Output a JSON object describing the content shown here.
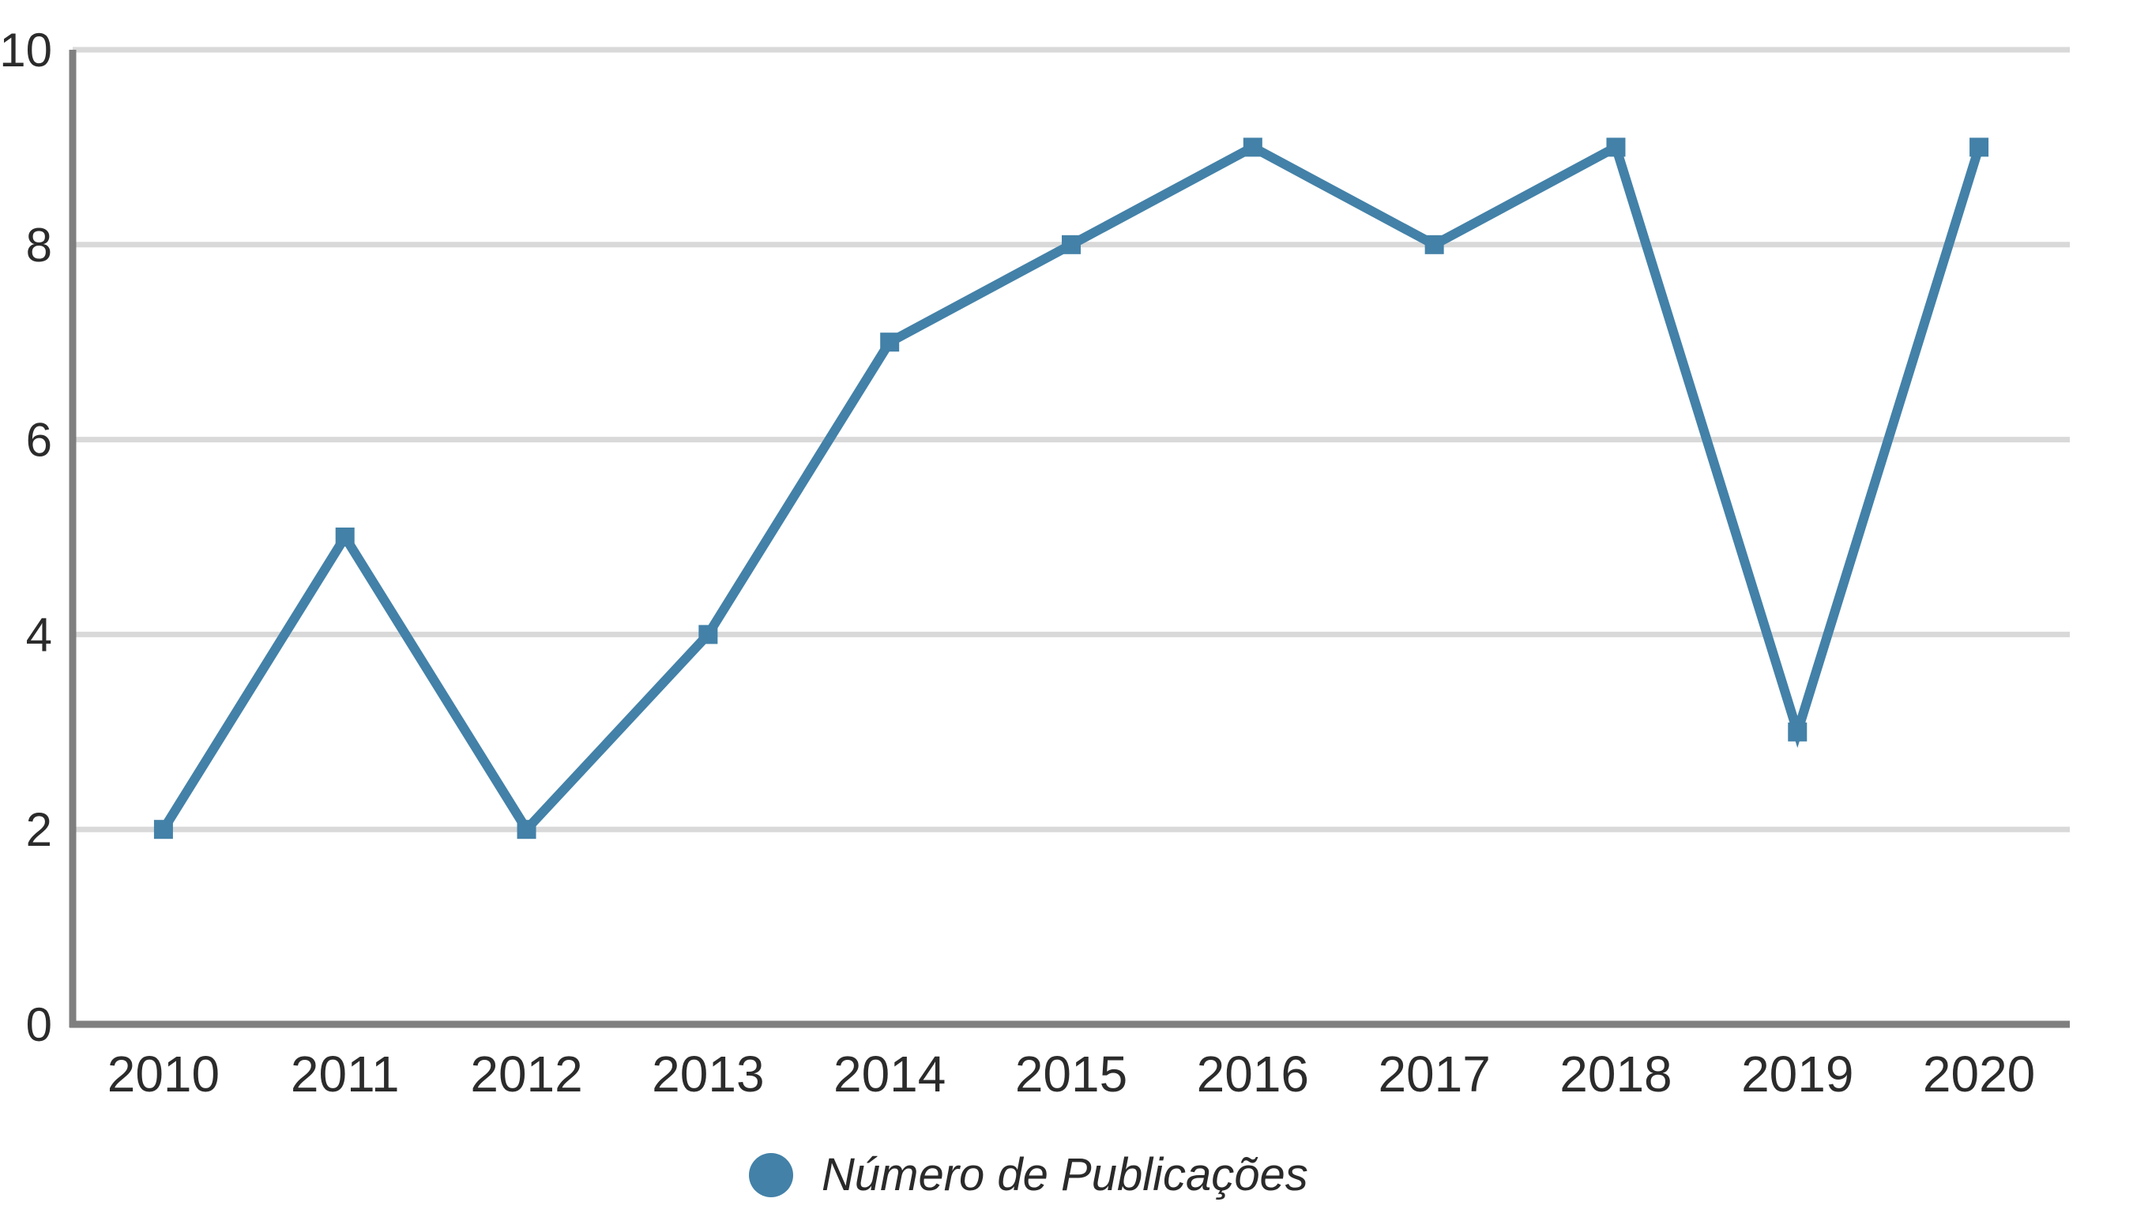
{
  "chart_data": {
    "type": "line",
    "title": "",
    "categories": [
      "2010",
      "2011",
      "2012",
      "2013",
      "2014",
      "2015",
      "2016",
      "2017",
      "2018",
      "2019",
      "2020"
    ],
    "series": [
      {
        "name": "Número de Publicações",
        "values": [
          2,
          5,
          2,
          4,
          7,
          8,
          9,
          8,
          9,
          3,
          9
        ]
      }
    ],
    "xlabel": "",
    "ylabel": "",
    "ylim": [
      0,
      10
    ],
    "yticks": [
      0,
      2,
      4,
      6,
      8,
      10
    ],
    "grid": "horizontal",
    "legend_position": "bottom-center",
    "legend_label": "Número de Publicações",
    "colors": {
      "line": "#4381a8",
      "marker": "#4381a8",
      "grid": "#d9d9d9",
      "axis": "#7f7f7f",
      "text": "#2b2b2b",
      "legend_text": "#2a2a2a"
    }
  }
}
